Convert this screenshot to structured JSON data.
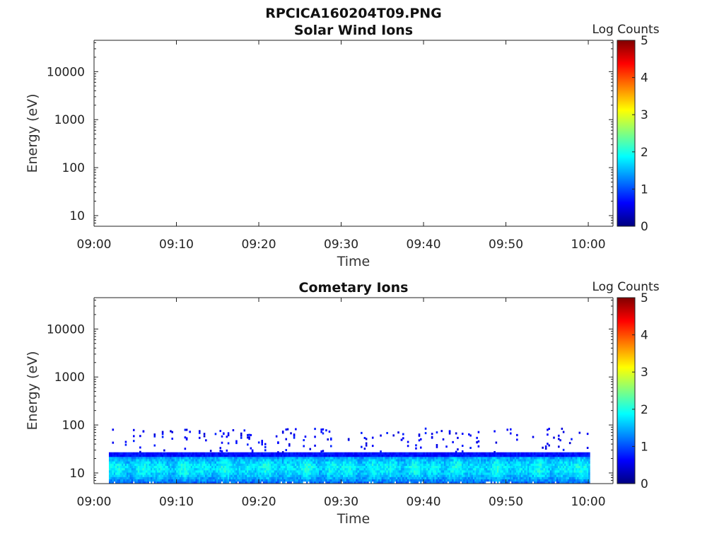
{
  "figure": {
    "title": "RPCICA160204T09.PNG"
  },
  "colors": {
    "jet": [
      "#000080",
      "#0000ff",
      "#0080ff",
      "#00ffff",
      "#80ff80",
      "#ffff00",
      "#ff8000",
      "#ff0000",
      "#800000"
    ]
  },
  "chart_data": [
    {
      "type": "heatmap",
      "title": "Solar Wind Ions",
      "xlabel": "Time",
      "ylabel": "Energy (eV)",
      "x_ticks": [
        "09:00",
        "09:10",
        "09:20",
        "09:30",
        "09:40",
        "09:50",
        "10:00"
      ],
      "x_range_min": [
        0,
        63
      ],
      "y_scale": "log",
      "y_range": [
        6,
        45000
      ],
      "y_ticks": [
        10,
        100,
        1000,
        10000
      ],
      "y_tick_labels": [
        "10",
        "100",
        "1000",
        "10000"
      ],
      "colorbar": {
        "label": "Log Counts",
        "range": [
          0,
          5
        ],
        "ticks": [
          "0",
          "1",
          "2",
          "3",
          "4",
          "5"
        ]
      },
      "data": "empty"
    },
    {
      "type": "heatmap",
      "title": "Cometary Ions",
      "xlabel": "Time",
      "ylabel": "Energy (eV)",
      "x_ticks": [
        "09:00",
        "09:10",
        "09:20",
        "09:30",
        "09:40",
        "09:50",
        "10:00"
      ],
      "x_range_min": [
        0,
        63
      ],
      "y_scale": "log",
      "y_range": [
        6,
        45000
      ],
      "y_ticks": [
        10,
        100,
        1000,
        10000
      ],
      "y_tick_labels": [
        "10",
        "100",
        "1000",
        "10000"
      ],
      "colorbar": {
        "label": "Log Counts",
        "range": [
          0,
          5
        ],
        "ticks": [
          "0",
          "1",
          "2",
          "3",
          "4",
          "5"
        ]
      },
      "data_extent": {
        "time_min": [
          1.8,
          60.2
        ],
        "energy_eV": [
          6,
          27
        ]
      },
      "log_counts_range": [
        0.4,
        2.3
      ],
      "sparse_counts_up_to_eV": 85
    }
  ]
}
